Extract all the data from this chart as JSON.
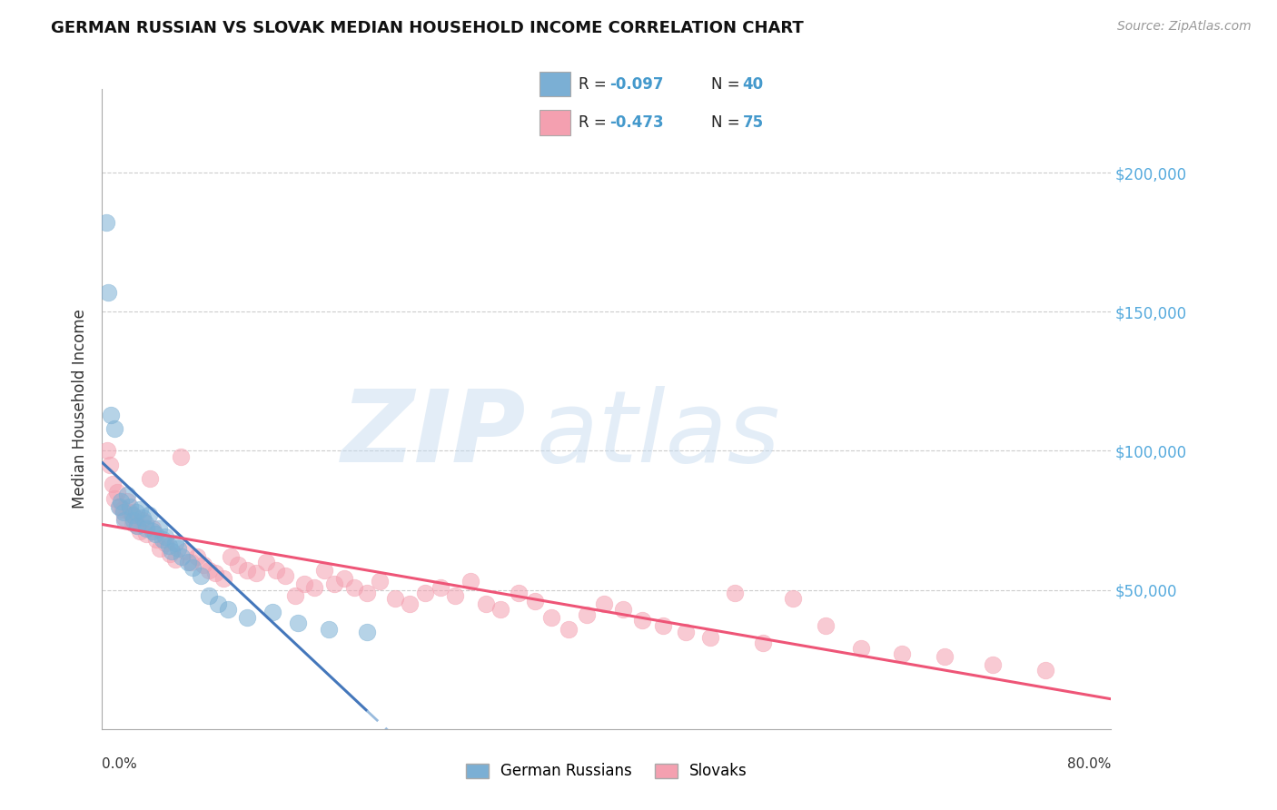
{
  "title": "GERMAN RUSSIAN VS SLOVAK MEDIAN HOUSEHOLD INCOME CORRELATION CHART",
  "source": "Source: ZipAtlas.com",
  "ylabel": "Median Household Income",
  "yticks": [
    0,
    50000,
    100000,
    150000,
    200000
  ],
  "ytick_labels": [
    "",
    "$50,000",
    "$100,000",
    "$150,000",
    "$200,000"
  ],
  "xlim": [
    0.0,
    0.8
  ],
  "ylim": [
    0,
    230000
  ],
  "legend_label1": "German Russians",
  "legend_label2": "Slovaks",
  "color_blue": "#7BAFD4",
  "color_pink": "#F4A0B0",
  "color_blue_line": "#4477BB",
  "color_pink_line": "#EE5577",
  "color_blue_dash": "#99BBDD",
  "gr_R": -0.097,
  "gr_N": 40,
  "sk_R": -0.473,
  "sk_N": 75,
  "german_russian_x": [
    0.003,
    0.005,
    0.007,
    0.01,
    0.013,
    0.015,
    0.017,
    0.018,
    0.02,
    0.022,
    0.024,
    0.025,
    0.027,
    0.028,
    0.03,
    0.032,
    0.034,
    0.035,
    0.037,
    0.04,
    0.042,
    0.045,
    0.048,
    0.05,
    0.053,
    0.055,
    0.058,
    0.06,
    0.063,
    0.068,
    0.072,
    0.078,
    0.085,
    0.092,
    0.1,
    0.115,
    0.135,
    0.155,
    0.18,
    0.21
  ],
  "german_russian_y": [
    182000,
    157000,
    113000,
    108000,
    80000,
    82000,
    78000,
    75000,
    84000,
    80000,
    77000,
    75000,
    78000,
    73000,
    79000,
    76000,
    74000,
    72000,
    77000,
    71000,
    70000,
    72000,
    68000,
    69000,
    66000,
    64000,
    67000,
    65000,
    62000,
    60000,
    58000,
    55000,
    48000,
    45000,
    43000,
    40000,
    42000,
    38000,
    36000,
    35000
  ],
  "slovak_x": [
    0.004,
    0.006,
    0.008,
    0.01,
    0.012,
    0.014,
    0.016,
    0.018,
    0.02,
    0.022,
    0.024,
    0.026,
    0.028,
    0.03,
    0.032,
    0.035,
    0.038,
    0.04,
    0.043,
    0.046,
    0.05,
    0.054,
    0.058,
    0.062,
    0.066,
    0.07,
    0.075,
    0.08,
    0.085,
    0.09,
    0.096,
    0.102,
    0.108,
    0.115,
    0.122,
    0.13,
    0.138,
    0.145,
    0.153,
    0.16,
    0.168,
    0.176,
    0.184,
    0.192,
    0.2,
    0.21,
    0.22,
    0.232,
    0.244,
    0.256,
    0.268,
    0.28,
    0.292,
    0.304,
    0.316,
    0.33,
    0.343,
    0.356,
    0.37,
    0.384,
    0.398,
    0.413,
    0.428,
    0.445,
    0.463,
    0.482,
    0.502,
    0.524,
    0.548,
    0.574,
    0.602,
    0.634,
    0.668,
    0.706,
    0.748
  ],
  "slovak_y": [
    100000,
    95000,
    88000,
    83000,
    85000,
    80000,
    79000,
    76000,
    82000,
    78000,
    74000,
    76000,
    73000,
    71000,
    75000,
    70000,
    90000,
    72000,
    68000,
    65000,
    67000,
    63000,
    61000,
    98000,
    64000,
    60000,
    62000,
    59000,
    57000,
    56000,
    54000,
    62000,
    59000,
    57000,
    56000,
    60000,
    57000,
    55000,
    48000,
    52000,
    51000,
    57000,
    52000,
    54000,
    51000,
    49000,
    53000,
    47000,
    45000,
    49000,
    51000,
    48000,
    53000,
    45000,
    43000,
    49000,
    46000,
    40000,
    36000,
    41000,
    45000,
    43000,
    39000,
    37000,
    35000,
    33000,
    49000,
    31000,
    47000,
    37000,
    29000,
    27000,
    26000,
    23000,
    21000
  ]
}
